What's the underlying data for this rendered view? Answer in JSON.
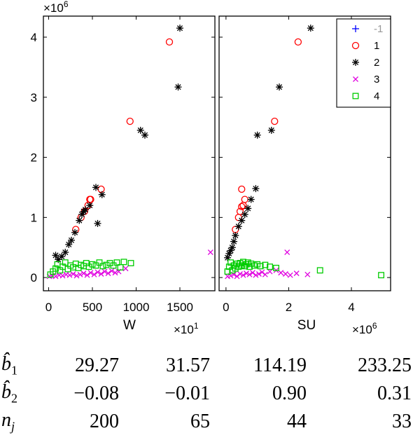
{
  "chart_data": [
    {
      "type": "scatter",
      "xlabel": "W",
      "x_multiplier": "×10",
      "x_multiplier_exp": "1",
      "y_multiplier": "×10",
      "y_multiplier_exp": "6",
      "xlim": [
        -60,
        1900
      ],
      "ylim": [
        -0.22,
        4.35
      ],
      "xticks": [
        0,
        500,
        1000,
        1500
      ],
      "yticks": [
        0,
        1,
        2,
        3,
        4
      ],
      "series": [
        {
          "name": "-1",
          "marker": "plus",
          "color": "#0000ff",
          "points": []
        },
        {
          "name": "1",
          "marker": "circle",
          "color": "#ff0000",
          "points": [
            [
              310,
              0.8
            ],
            [
              370,
              1.0
            ],
            [
              410,
              1.1
            ],
            [
              450,
              1.2
            ],
            [
              470,
              1.3
            ],
            [
              480,
              1.3
            ],
            [
              600,
              1.47
            ],
            [
              930,
              2.6
            ],
            [
              1380,
              3.92
            ]
          ]
        },
        {
          "name": "2",
          "marker": "asterisk",
          "color": "#000000",
          "points": [
            [
              80,
              0.37
            ],
            [
              110,
              0.3
            ],
            [
              150,
              0.35
            ],
            [
              190,
              0.42
            ],
            [
              230,
              0.55
            ],
            [
              260,
              0.62
            ],
            [
              300,
              0.75
            ],
            [
              350,
              0.95
            ],
            [
              380,
              1.05
            ],
            [
              400,
              1.1
            ],
            [
              420,
              1.13
            ],
            [
              470,
              1.2
            ],
            [
              540,
              1.5
            ],
            [
              560,
              0.9
            ],
            [
              610,
              1.38
            ],
            [
              1050,
              2.45
            ],
            [
              1100,
              2.37
            ],
            [
              1480,
              3.17
            ],
            [
              1500,
              4.15
            ]
          ]
        },
        {
          "name": "3",
          "marker": "cross",
          "color": "#e000e0",
          "points": [
            [
              10,
              0.02
            ],
            [
              40,
              0.03
            ],
            [
              80,
              0.02
            ],
            [
              120,
              0.04
            ],
            [
              160,
              0.03
            ],
            [
              200,
              0.05
            ],
            [
              240,
              0.04
            ],
            [
              280,
              0.06
            ],
            [
              320,
              0.03
            ],
            [
              360,
              0.05
            ],
            [
              400,
              0.07
            ],
            [
              440,
              0.04
            ],
            [
              480,
              0.08
            ],
            [
              520,
              0.05
            ],
            [
              560,
              0.09
            ],
            [
              600,
              0.06
            ],
            [
              640,
              0.1
            ],
            [
              680,
              0.07
            ],
            [
              720,
              0.11
            ],
            [
              760,
              0.08
            ],
            [
              800,
              0.1
            ],
            [
              880,
              0.15
            ],
            [
              1850,
              0.42
            ]
          ]
        },
        {
          "name": "4",
          "marker": "square",
          "color": "#00cc00",
          "points": [
            [
              20,
              0.05
            ],
            [
              50,
              0.1
            ],
            [
              80,
              0.15
            ],
            [
              100,
              0.22
            ],
            [
              130,
              0.12
            ],
            [
              160,
              0.18
            ],
            [
              190,
              0.25
            ],
            [
              220,
              0.14
            ],
            [
              250,
              0.2
            ],
            [
              280,
              0.17
            ],
            [
              310,
              0.23
            ],
            [
              340,
              0.16
            ],
            [
              370,
              0.21
            ],
            [
              400,
              0.19
            ],
            [
              430,
              0.24
            ],
            [
              460,
              0.18
            ],
            [
              500,
              0.22
            ],
            [
              540,
              0.2
            ],
            [
              580,
              0.25
            ],
            [
              620,
              0.19
            ],
            [
              660,
              0.21
            ],
            [
              700,
              0.24
            ],
            [
              740,
              0.2
            ],
            [
              780,
              0.25
            ],
            [
              820,
              0.17
            ],
            [
              860,
              0.26
            ],
            [
              940,
              0.24
            ]
          ]
        }
      ]
    },
    {
      "type": "scatter",
      "xlabel": "SU",
      "x_multiplier": "×10",
      "x_multiplier_exp": "6",
      "xlim": [
        -0.22,
        5.25
      ],
      "ylim": [
        -0.22,
        4.35
      ],
      "xticks": [
        0,
        2,
        4
      ],
      "series": [
        {
          "name": "-1",
          "marker": "plus",
          "color": "#0000ff",
          "points": []
        },
        {
          "name": "1",
          "marker": "circle",
          "color": "#ff0000",
          "points": [
            [
              0.3,
              0.8
            ],
            [
              0.4,
              1.0
            ],
            [
              0.45,
              1.1
            ],
            [
              0.5,
              1.18
            ],
            [
              0.55,
              1.2
            ],
            [
              0.6,
              1.3
            ],
            [
              0.5,
              1.47
            ],
            [
              1.55,
              2.6
            ],
            [
              2.3,
              3.92
            ]
          ]
        },
        {
          "name": "2",
          "marker": "asterisk",
          "color": "#000000",
          "points": [
            [
              0.05,
              0.33
            ],
            [
              0.1,
              0.4
            ],
            [
              0.15,
              0.45
            ],
            [
              0.2,
              0.5
            ],
            [
              0.25,
              0.6
            ],
            [
              0.3,
              0.7
            ],
            [
              0.4,
              0.85
            ],
            [
              0.5,
              0.95
            ],
            [
              0.6,
              1.05
            ],
            [
              0.7,
              1.15
            ],
            [
              0.8,
              1.3
            ],
            [
              0.95,
              1.48
            ],
            [
              1.0,
              2.37
            ],
            [
              1.45,
              2.45
            ],
            [
              1.7,
              3.17
            ],
            [
              2.7,
              4.15
            ]
          ]
        },
        {
          "name": "3",
          "marker": "cross",
          "color": "#e000e0",
          "points": [
            [
              0.05,
              0.02
            ],
            [
              0.15,
              0.03
            ],
            [
              0.25,
              0.05
            ],
            [
              0.35,
              0.02
            ],
            [
              0.45,
              0.06
            ],
            [
              0.55,
              0.04
            ],
            [
              0.65,
              0.07
            ],
            [
              0.75,
              0.05
            ],
            [
              0.85,
              0.08
            ],
            [
              0.95,
              0.04
            ],
            [
              1.05,
              0.06
            ],
            [
              1.15,
              0.09
            ],
            [
              1.25,
              0.05
            ],
            [
              1.4,
              0.1
            ],
            [
              1.6,
              0.12
            ],
            [
              1.75,
              0.08
            ],
            [
              1.9,
              0.06
            ],
            [
              2.05,
              0.04
            ],
            [
              2.25,
              0.07
            ],
            [
              2.6,
              0.05
            ],
            [
              1.95,
              0.42
            ]
          ]
        },
        {
          "name": "4",
          "marker": "square",
          "color": "#00cc00",
          "points": [
            [
              0.05,
              0.1
            ],
            [
              0.1,
              0.18
            ],
            [
              0.15,
              0.25
            ],
            [
              0.2,
              0.12
            ],
            [
              0.25,
              0.2
            ],
            [
              0.3,
              0.15
            ],
            [
              0.35,
              0.23
            ],
            [
              0.4,
              0.18
            ],
            [
              0.45,
              0.24
            ],
            [
              0.5,
              0.2
            ],
            [
              0.55,
              0.26
            ],
            [
              0.6,
              0.19
            ],
            [
              0.65,
              0.22
            ],
            [
              0.7,
              0.25
            ],
            [
              0.75,
              0.18
            ],
            [
              0.8,
              0.23
            ],
            [
              0.9,
              0.2
            ],
            [
              1.0,
              0.22
            ],
            [
              1.1,
              0.19
            ],
            [
              1.25,
              0.21
            ],
            [
              1.4,
              0.18
            ],
            [
              1.6,
              0.16
            ],
            [
              3.0,
              0.12
            ],
            [
              4.95,
              0.04
            ]
          ]
        }
      ]
    }
  ],
  "legend": {
    "position": "top-right",
    "items": [
      {
        "label": "-1",
        "marker": "plus",
        "color": "#0000ff"
      },
      {
        "label": "1",
        "marker": "circle",
        "color": "#ff0000"
      },
      {
        "label": "2",
        "marker": "asterisk",
        "color": "#000000"
      },
      {
        "label": "3",
        "marker": "cross",
        "color": "#e000e0"
      },
      {
        "label": "4",
        "marker": "square",
        "color": "#00cc00"
      }
    ]
  },
  "stats_table": {
    "rows": [
      {
        "label": "b̂",
        "sub": "1",
        "values": [
          "29.27",
          "31.57",
          "114.19",
          "233.25"
        ]
      },
      {
        "label": "b̂",
        "sub": "2",
        "values": [
          "−0.08",
          "−0.01",
          "0.90",
          "0.31"
        ]
      },
      {
        "label": "n",
        "sub": "j",
        "values": [
          "200",
          "65",
          "44",
          "33"
        ]
      }
    ]
  }
}
